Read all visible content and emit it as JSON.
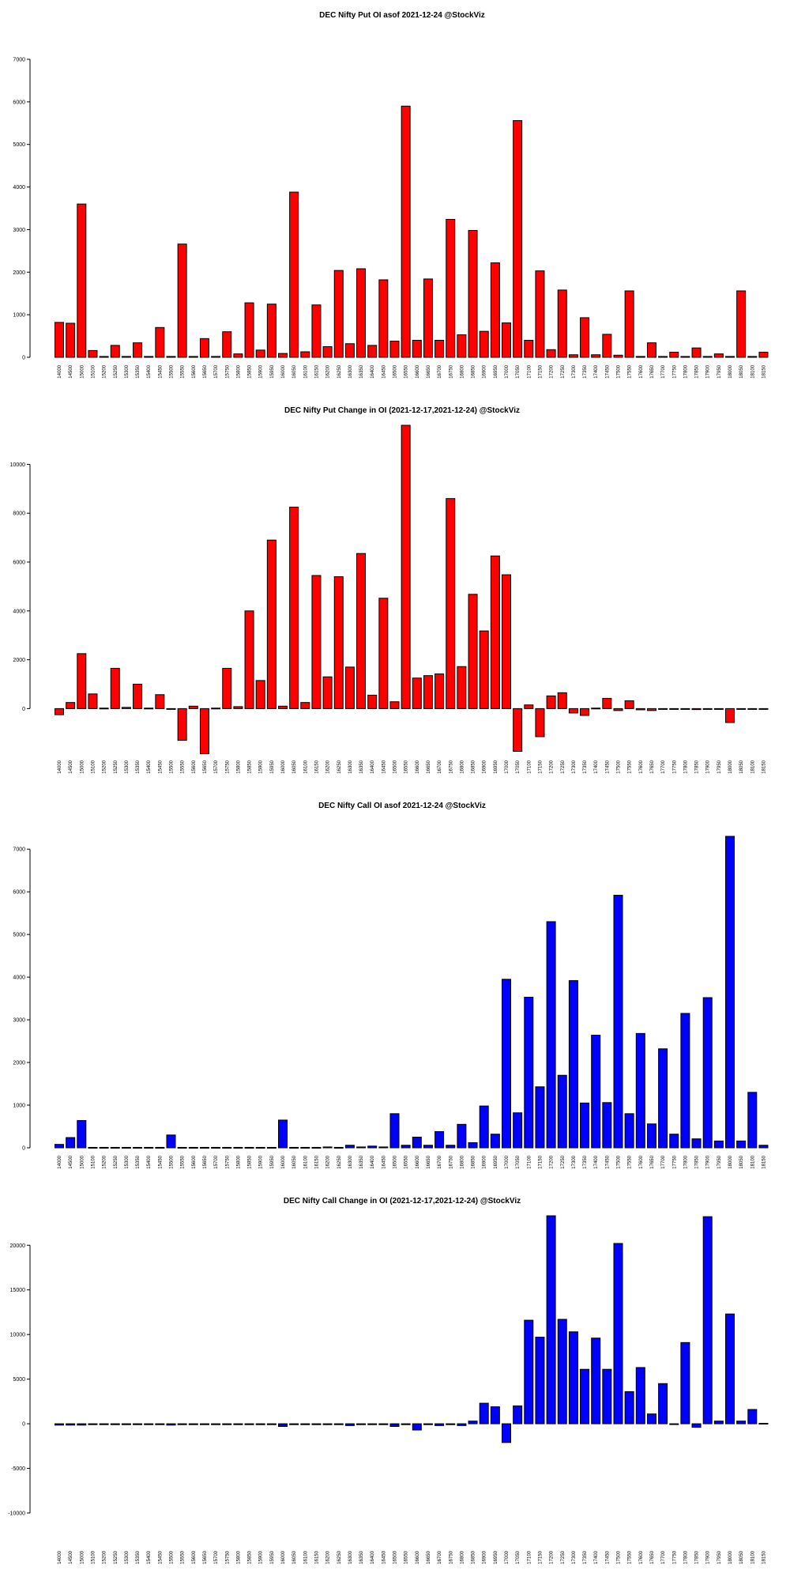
{
  "chart_data": [
    {
      "type": "bar",
      "title": "DEC Nifty Put OI asof 2021-12-24 @StockViz",
      "xlabel": "",
      "ylabel": "",
      "ylim": [
        0,
        7000
      ],
      "yticks": [
        0,
        1000,
        2000,
        3000,
        4000,
        5000,
        6000,
        7000
      ],
      "bar_color": "#ff0000",
      "categories": [
        "14000",
        "14500",
        "15000",
        "15100",
        "15200",
        "15250",
        "15300",
        "15350",
        "15400",
        "15450",
        "15500",
        "15550",
        "15600",
        "15650",
        "15700",
        "15750",
        "15800",
        "15850",
        "15900",
        "15950",
        "16000",
        "16050",
        "16100",
        "16150",
        "16200",
        "16250",
        "16300",
        "16350",
        "16400",
        "16450",
        "16500",
        "16550",
        "16600",
        "16650",
        "16700",
        "16750",
        "16800",
        "16850",
        "16900",
        "16950",
        "17000",
        "17050",
        "17100",
        "17150",
        "17200",
        "17250",
        "17300",
        "17350",
        "17400",
        "17450",
        "17500",
        "17550",
        "17600",
        "17650",
        "17700",
        "17750",
        "17800",
        "17850",
        "17900",
        "17950",
        "18000",
        "18050",
        "18100",
        "18150"
      ],
      "values": [
        820,
        800,
        3600,
        160,
        20,
        280,
        20,
        340,
        20,
        700,
        20,
        2660,
        20,
        440,
        20,
        600,
        80,
        1280,
        170,
        1250,
        90,
        3880,
        130,
        1230,
        250,
        2040,
        320,
        2080,
        280,
        1820,
        380,
        5900,
        400,
        1840,
        400,
        3240,
        530,
        2980,
        610,
        2220,
        810,
        5560,
        400,
        2030,
        180,
        1580,
        60,
        930,
        60,
        540,
        50,
        1560,
        20,
        340,
        20,
        120,
        20,
        220,
        20,
        80,
        20,
        1560,
        20,
        120
      ]
    },
    {
      "type": "bar",
      "title": "DEC Nifty Put Change in OI (2021-12-17,2021-12-24) @StockViz",
      "xlabel": "",
      "ylabel": "",
      "ylim": [
        -1800,
        11600
      ],
      "yticks": [
        0,
        2000,
        4000,
        6000,
        8000,
        10000
      ],
      "bar_color": "#ff0000",
      "categories": [
        "14000",
        "14500",
        "15000",
        "15100",
        "15200",
        "15250",
        "15300",
        "15350",
        "15400",
        "15450",
        "15500",
        "15550",
        "15600",
        "15650",
        "15700",
        "15750",
        "15800",
        "15850",
        "15900",
        "15950",
        "16000",
        "16050",
        "16100",
        "16150",
        "16200",
        "16250",
        "16300",
        "16350",
        "16400",
        "16450",
        "16500",
        "16550",
        "16600",
        "16650",
        "16700",
        "16750",
        "16800",
        "16850",
        "16900",
        "16950",
        "17000",
        "17050",
        "17100",
        "17150",
        "17200",
        "17250",
        "17300",
        "17350",
        "17400",
        "17450",
        "17500",
        "17550",
        "17600",
        "17650",
        "17700",
        "17750",
        "17800",
        "17850",
        "17900",
        "17950",
        "18000",
        "18050",
        "18100",
        "18150"
      ],
      "values": [
        -250,
        250,
        2250,
        600,
        20,
        1650,
        50,
        1000,
        20,
        570,
        -20,
        -1300,
        100,
        -1850,
        20,
        1650,
        80,
        4000,
        1150,
        6900,
        100,
        8250,
        250,
        5450,
        1300,
        5400,
        1700,
        6350,
        550,
        4520,
        280,
        11600,
        1250,
        1350,
        1420,
        8600,
        1720,
        4680,
        3180,
        6250,
        5480,
        -1750,
        150,
        -1150,
        520,
        650,
        -180,
        -280,
        20,
        420,
        -80,
        320,
        -50,
        -80,
        -30,
        -30,
        -30,
        -40,
        -30,
        -30,
        -570,
        -30,
        -30,
        -30
      ]
    },
    {
      "type": "bar",
      "title": "DEC Nifty Call OI asof 2021-12-24 @StockViz",
      "xlabel": "",
      "ylabel": "",
      "ylim": [
        0,
        7300
      ],
      "yticks": [
        0,
        1000,
        2000,
        3000,
        4000,
        5000,
        6000,
        7000
      ],
      "bar_color": "#0000ff",
      "categories": [
        "14000",
        "14500",
        "15000",
        "15100",
        "15200",
        "15250",
        "15300",
        "15350",
        "15400",
        "15450",
        "15500",
        "15550",
        "15600",
        "15650",
        "15700",
        "15750",
        "15800",
        "15850",
        "15900",
        "15950",
        "16000",
        "16050",
        "16100",
        "16150",
        "16200",
        "16250",
        "16300",
        "16350",
        "16400",
        "16450",
        "16500",
        "16550",
        "16600",
        "16650",
        "16700",
        "16750",
        "16800",
        "16850",
        "16900",
        "16950",
        "17000",
        "17050",
        "17100",
        "17150",
        "17200",
        "17250",
        "17300",
        "17350",
        "17400",
        "17450",
        "17500",
        "17550",
        "17600",
        "17650",
        "17700",
        "17750",
        "17800",
        "17850",
        "17900",
        "17950",
        "18000",
        "18050",
        "18100",
        "18150"
      ],
      "values": [
        80,
        240,
        640,
        10,
        10,
        10,
        10,
        10,
        10,
        10,
        300,
        10,
        10,
        10,
        10,
        10,
        10,
        10,
        10,
        10,
        650,
        10,
        10,
        10,
        20,
        10,
        60,
        20,
        40,
        20,
        800,
        60,
        250,
        60,
        380,
        60,
        550,
        120,
        980,
        320,
        3950,
        820,
        3530,
        1430,
        5300,
        1700,
        3920,
        1050,
        2640,
        1060,
        5920,
        800,
        2680,
        560,
        2320,
        320,
        3150,
        210,
        3520,
        160,
        7300,
        160,
        1300,
        60
      ]
    },
    {
      "type": "bar",
      "title": "DEC Nifty Call Change in OI (2021-12-17,2021-12-24) @StockViz",
      "xlabel": "",
      "ylabel": "",
      "ylim": [
        -10000,
        23300
      ],
      "yticks": [
        -10000,
        -5000,
        0,
        5000,
        10000,
        15000,
        20000
      ],
      "bar_color": "#0000ff",
      "categories": [
        "14000",
        "14500",
        "15000",
        "15100",
        "15200",
        "15250",
        "15300",
        "15350",
        "15400",
        "15450",
        "15500",
        "15550",
        "15600",
        "15650",
        "15700",
        "15750",
        "15800",
        "15850",
        "15900",
        "15950",
        "16000",
        "16050",
        "16100",
        "16150",
        "16200",
        "16250",
        "16300",
        "16350",
        "16400",
        "16450",
        "16500",
        "16550",
        "16600",
        "16650",
        "16700",
        "16750",
        "16800",
        "16850",
        "16900",
        "16950",
        "17000",
        "17050",
        "17100",
        "17150",
        "17200",
        "17250",
        "17300",
        "17350",
        "17400",
        "17450",
        "17500",
        "17550",
        "17600",
        "17650",
        "17700",
        "17750",
        "17800",
        "17850",
        "17900",
        "17950",
        "18000",
        "18050",
        "18100",
        "18150"
      ],
      "values": [
        -150,
        -150,
        -150,
        -100,
        -100,
        -100,
        -100,
        -100,
        -100,
        -100,
        -150,
        -100,
        -100,
        -100,
        -100,
        -100,
        -100,
        -100,
        -100,
        -100,
        -300,
        -100,
        -100,
        -100,
        -100,
        -100,
        -200,
        -100,
        -100,
        -100,
        -300,
        -100,
        -700,
        -100,
        -200,
        -100,
        -200,
        300,
        2300,
        1900,
        -2100,
        2000,
        11600,
        9700,
        23300,
        11700,
        10300,
        6100,
        9600,
        6100,
        20200,
        3600,
        6300,
        1100,
        4500,
        -50,
        9100,
        -400,
        23200,
        300,
        12300,
        300,
        1600,
        50
      ]
    }
  ]
}
